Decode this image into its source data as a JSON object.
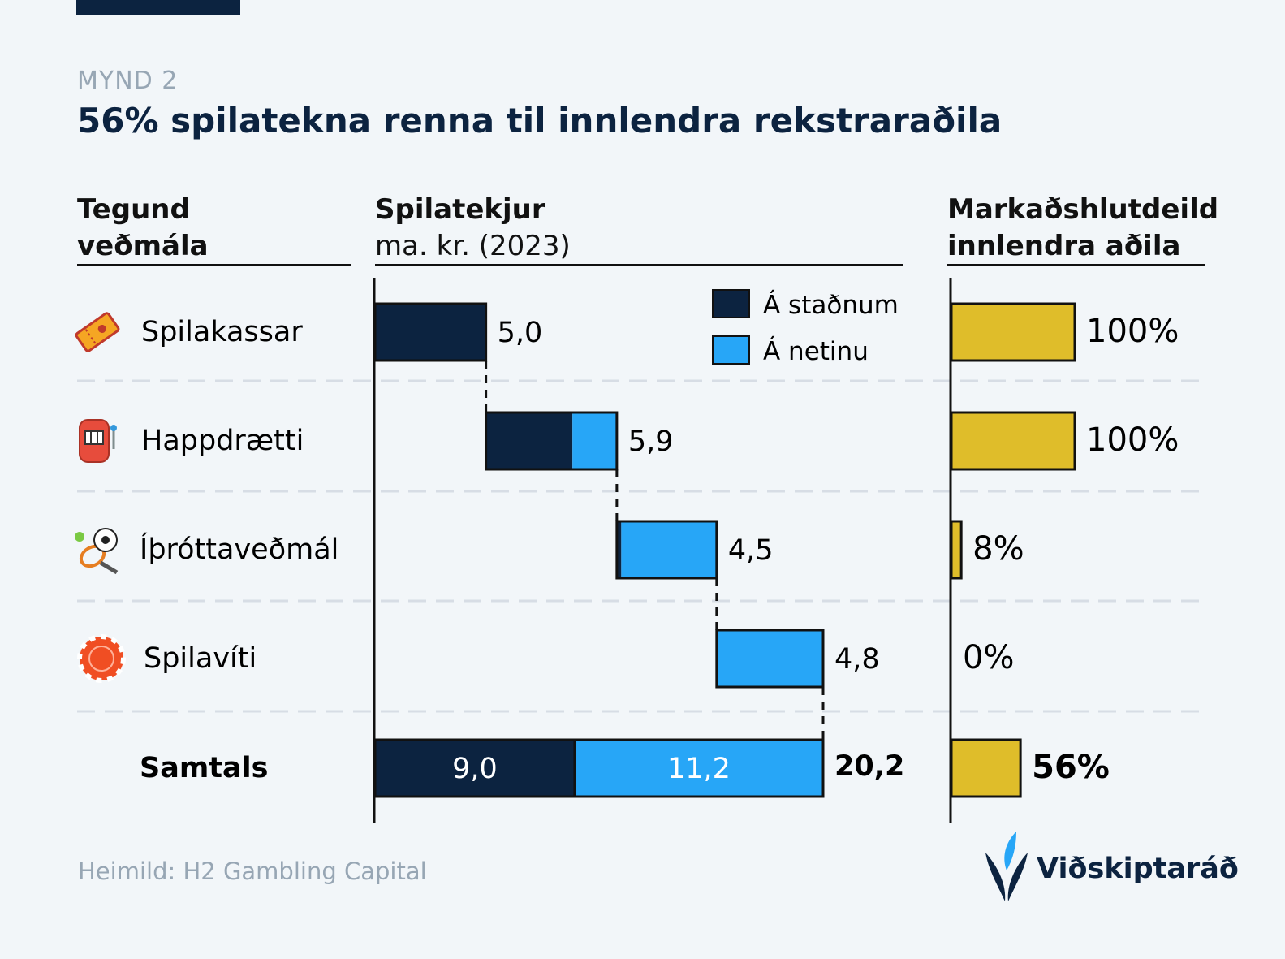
{
  "figure_label": "MYND 2",
  "title": "56% spilatekna renna til innlendra rekstraraðila",
  "headers": {
    "type_line1": "Tegund",
    "type_line2": "veðmála",
    "revenue_line1": "Spilatekjur",
    "revenue_line2": "ma. kr. (2023)",
    "share_line1": "Markaðshlutdeild",
    "share_line2": "innlendra aðila"
  },
  "source": "Heimild: H2 Gambling Capital",
  "logo_text": "Viðskiptaráð",
  "colors": {
    "navy": "#0c2340",
    "blue": "#27a6f7",
    "gold": "#dfbd2a",
    "muted": "#97a6b4"
  },
  "chart_data": {
    "type": "bar",
    "subtype": "waterfall-with-share",
    "legend": [
      "Á staðnum",
      "Á netinu"
    ],
    "rows": [
      {
        "label": "Spilakassar",
        "icon": "ticket-icon",
        "onsite": 5.0,
        "online": 0.0,
        "total_label": "5,0",
        "share": 100,
        "share_label": "100%"
      },
      {
        "label": "Happdrætti",
        "icon": "slot-machine-icon",
        "onsite": 3.9,
        "online": 2.0,
        "total_label": "5,9",
        "share": 100,
        "share_label": "100%"
      },
      {
        "label": "Íþróttaveðmál",
        "icon": "sports-icon",
        "onsite": 0.2,
        "online": 4.3,
        "total_label": "4,5",
        "share": 8,
        "share_label": "8%"
      },
      {
        "label": "Spilavíti",
        "icon": "casino-chip-icon",
        "onsite": 0.0,
        "online": 4.8,
        "total_label": "4,8",
        "share": 0,
        "share_label": "0%"
      }
    ],
    "total": {
      "label": "Samtals",
      "onsite": 9.0,
      "online": 11.2,
      "onsite_label": "9,0",
      "online_label": "11,2",
      "total_label": "20,2",
      "share": 56,
      "share_label": "56%"
    },
    "x_range": [
      0,
      20.2
    ],
    "share_range": [
      0,
      100
    ]
  }
}
